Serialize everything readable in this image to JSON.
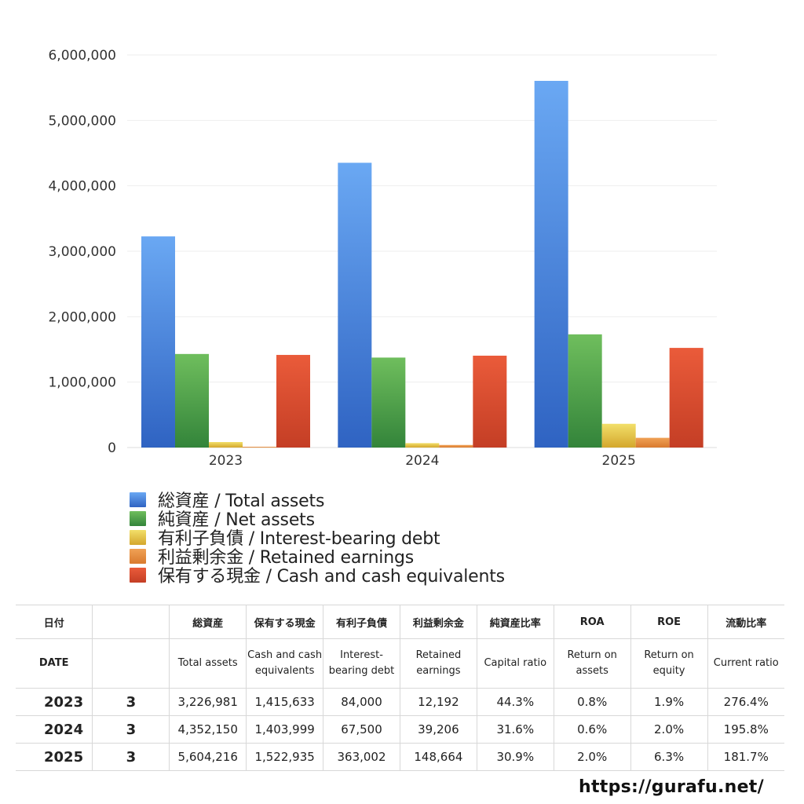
{
  "chart_data": {
    "type": "bar",
    "categories": [
      "2023",
      "2024",
      "2025"
    ],
    "series": [
      {
        "name": "総資産 / Total assets",
        "color": "#3f84e0",
        "values": [
          3226981,
          4352150,
          5604216
        ]
      },
      {
        "name": "純資産 / Net assets",
        "color": "#4a9b3e",
        "values": [
          1430000,
          1375000,
          1730000
        ]
      },
      {
        "name": "有利子負債 / Interest-bearing debt",
        "color": "#e6c23a",
        "values": [
          84000,
          67500,
          363002
        ]
      },
      {
        "name": "利益剰余金 / Retained earnings",
        "color": "#e5883a",
        "values": [
          12192,
          39206,
          148664
        ]
      },
      {
        "name": "保有する現金 /  Cash and cash equivalents",
        "color": "#d9492e",
        "values": [
          1415633,
          1403999,
          1522935
        ]
      }
    ],
    "ylim": [
      0,
      6000000
    ],
    "yticks": [
      "0",
      "1,000,000",
      "2,000,000",
      "3,000,000",
      "4,000,000",
      "5,000,000",
      "6,000,000"
    ],
    "grid": true,
    "legend_position": "bottom"
  },
  "table": {
    "header_jp": [
      "日付",
      "",
      "総資産",
      "保有する現金",
      "有利子負債",
      "利益剰余金",
      "純資産比率",
      "ROA",
      "ROE",
      "流動比率"
    ],
    "header_en": [
      "DATE",
      "",
      "Total assets",
      "Cash and cash equivalents",
      "Interest-bearing debt",
      "Retained earnings",
      "Capital ratio",
      "Return on assets",
      "Return on equity",
      "Current ratio"
    ],
    "rows": [
      [
        "2023",
        "3",
        "3,226,981",
        "1,415,633",
        "84,000",
        "12,192",
        "44.3%",
        "0.8%",
        "1.9%",
        "276.4%"
      ],
      [
        "2024",
        "3",
        "4,352,150",
        "1,403,999",
        "67,500",
        "39,206",
        "31.6%",
        "0.6%",
        "2.0%",
        "195.8%"
      ],
      [
        "2025",
        "3",
        "5,604,216",
        "1,522,935",
        "363,002",
        "148,664",
        "30.9%",
        "2.0%",
        "6.3%",
        "181.7%"
      ]
    ]
  },
  "footer": {
    "site_url": "https://gurafu.net/"
  }
}
